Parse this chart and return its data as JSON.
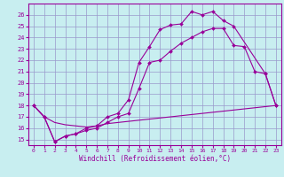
{
  "xlabel": "Windchill (Refroidissement éolien,°C)",
  "background_color": "#c8eef0",
  "grid_color": "#9999cc",
  "line_color": "#990099",
  "xlim": [
    -0.5,
    23.5
  ],
  "ylim": [
    14.5,
    27.0
  ],
  "yticks": [
    15,
    16,
    17,
    18,
    19,
    20,
    21,
    22,
    23,
    24,
    25,
    26
  ],
  "xticks": [
    0,
    1,
    2,
    3,
    4,
    5,
    6,
    7,
    8,
    9,
    10,
    11,
    12,
    13,
    14,
    15,
    16,
    17,
    18,
    19,
    20,
    21,
    22,
    23
  ],
  "series": [
    {
      "x": [
        0,
        1,
        2,
        3,
        4,
        5,
        6,
        7,
        8,
        9,
        10,
        11,
        12,
        13,
        14,
        15,
        16,
        17,
        18,
        19,
        22,
        23
      ],
      "y": [
        18.0,
        17.0,
        14.8,
        15.3,
        15.5,
        16.0,
        16.2,
        17.0,
        17.3,
        18.5,
        21.8,
        23.2,
        24.7,
        25.1,
        25.2,
        26.3,
        26.0,
        26.3,
        25.5,
        25.0,
        20.8,
        18.0
      ],
      "marker": true
    },
    {
      "x": [
        0,
        1,
        2,
        3,
        4,
        5,
        6,
        7,
        8,
        9,
        10,
        11,
        12,
        13,
        14,
        15,
        16,
        17,
        18,
        19,
        20,
        21,
        22,
        23
      ],
      "y": [
        18.0,
        17.0,
        14.8,
        15.3,
        15.5,
        15.8,
        16.0,
        16.5,
        17.0,
        17.3,
        19.5,
        21.8,
        22.0,
        22.8,
        23.5,
        24.0,
        24.5,
        24.8,
        24.8,
        23.3,
        23.2,
        21.0,
        20.8,
        18.0
      ],
      "marker": true
    },
    {
      "x": [
        0,
        1,
        2,
        3,
        4,
        5,
        6,
        7,
        8,
        9,
        10,
        11,
        12,
        13,
        14,
        15,
        16,
        17,
        18,
        19,
        20,
        21,
        22,
        23
      ],
      "y": [
        18.0,
        17.0,
        16.5,
        16.3,
        16.2,
        16.1,
        16.2,
        16.4,
        16.5,
        16.6,
        16.7,
        16.8,
        16.9,
        17.0,
        17.1,
        17.2,
        17.3,
        17.4,
        17.5,
        17.6,
        17.7,
        17.8,
        17.9,
        18.0
      ],
      "marker": false
    }
  ]
}
